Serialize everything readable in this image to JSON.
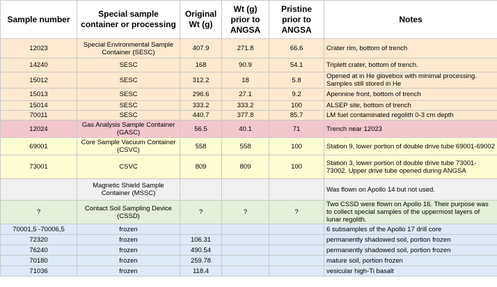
{
  "header": {
    "sample_number": "Sample number",
    "container": "Special sample container or processing",
    "original_wt": "Original Wt (g)",
    "wt_prior": "Wt (g) prior to ANGSA",
    "pristine_prior": "Pristine prior to ANGSA",
    "notes": "Notes"
  },
  "rows": [
    {
      "sample": "12023",
      "container": "Special Environmental Sample Container (SESC)",
      "original_wt": "407.9",
      "wt_prior": "271.8",
      "pristine": "66.6",
      "notes": "Crater rim, bottom of trench",
      "color": "orange"
    },
    {
      "sample": "14240",
      "container": "SESC",
      "original_wt": "168",
      "wt_prior": "90.9",
      "pristine": "54.1",
      "notes": "Triplett crater, bottom of trench.",
      "color": "orange"
    },
    {
      "sample": "15012",
      "container": "SESC",
      "original_wt": "312.2",
      "wt_prior": "18",
      "pristine": "5.8",
      "notes": "Opened at in He glovebox with minimal processing. Samples still stored in He",
      "color": "orange"
    },
    {
      "sample": "15013",
      "container": "SESC",
      "original_wt": "296.6",
      "wt_prior": "27.1",
      "pristine": "9.2",
      "notes": "Apennine front, bottom of trench",
      "color": "orange"
    },
    {
      "sample": "15014",
      "container": "SESC",
      "original_wt": "333.2",
      "wt_prior": "333.2",
      "pristine": "100",
      "notes": "ALSEP site, bottom of trench",
      "color": "orange"
    },
    {
      "sample": "70011",
      "container": "SESC",
      "original_wt": "440.7",
      "wt_prior": "377.8",
      "pristine": "85.7",
      "notes": "LM fuel contaminated regolith 0-3 cm depth",
      "color": "orange"
    },
    {
      "sample": "12024",
      "container": "Gas Analysis Sample Container (GASC)",
      "original_wt": "56.5",
      "wt_prior": "40.1",
      "pristine": "71",
      "notes": "Trench near 12023",
      "color": "red"
    },
    {
      "sample": "69001",
      "container": "Core Sample Vacuum Container (CSVC)",
      "original_wt": "558",
      "wt_prior": "558",
      "pristine": "100",
      "notes": "Station 9, lower portion of double drive tube 69001-69002",
      "color": "yellow"
    },
    {
      "sample": "73001",
      "container": "CSVC",
      "original_wt": "809",
      "wt_prior": "809",
      "pristine": "100",
      "notes": "Station 3, lower portion of double drive tube 73001-73002. Upper drive tube opened during ANGSA",
      "color": "yellow"
    },
    {
      "sample": "",
      "container": "Magnetic Shield Sample Container (MSSC)",
      "original_wt": "",
      "wt_prior": "",
      "pristine": "",
      "notes": "Was flown on Apollo 14 but not used.",
      "color": "gray"
    },
    {
      "sample": "?",
      "container": "Contact Soil Sampling Device (CSSD)",
      "original_wt": "?",
      "wt_prior": "?",
      "pristine": "?",
      "notes": "Two CSSD were flown on Apollo 16. Their purpose was to collect special samples of the uppermost layers of lunar regolith.",
      "color": "green"
    },
    {
      "sample": "70001,5 -70006,5",
      "container": "frozen",
      "original_wt": "",
      "wt_prior": "",
      "pristine": "",
      "notes": "6 subsamples of the Apollo 17 drill core",
      "color": "blue"
    },
    {
      "sample": "72320",
      "container": "frozen",
      "original_wt": "106.31",
      "wt_prior": "",
      "pristine": "",
      "notes": "permanently shadowed soil, portion frozen",
      "color": "blue"
    },
    {
      "sample": "76240",
      "container": "frozen",
      "original_wt": "490.54",
      "wt_prior": "",
      "pristine": "",
      "notes": "permanently shadowed soil, portion frozen",
      "color": "blue"
    },
    {
      "sample": "70180",
      "container": "frozen",
      "original_wt": "259.78",
      "wt_prior": "",
      "pristine": "",
      "notes": "mature soil, portion frozen",
      "color": "blue"
    },
    {
      "sample": "71036",
      "container": "frozen",
      "original_wt": "118.4",
      "wt_prior": "",
      "pristine": "",
      "notes": "vesicular high-Ti basalt",
      "color": "blue"
    }
  ]
}
